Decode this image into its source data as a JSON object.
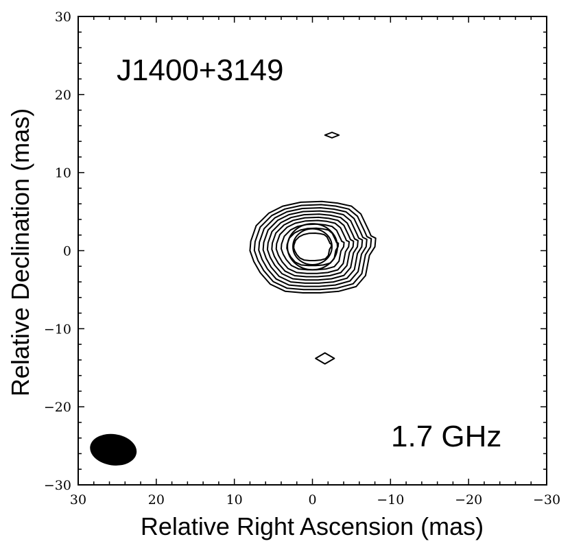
{
  "chart_data": {
    "type": "contour",
    "title": "J1400+3149",
    "frequency_label": "1.7 GHz",
    "xlabel": "Relative Right Ascension (mas)",
    "ylabel": "Relative Declination (mas)",
    "xlim": [
      30,
      -30
    ],
    "ylim": [
      -30,
      30
    ],
    "x_reversed": true,
    "x_ticks": [
      30,
      20,
      10,
      0,
      -10,
      -20,
      -30
    ],
    "y_ticks": [
      30,
      20,
      10,
      0,
      -10,
      -20,
      -30
    ],
    "x_tick_labels": [
      "30",
      "20",
      "10",
      "0",
      "−10",
      "−20",
      "−30"
    ],
    "y_tick_labels": [
      "30",
      "20",
      "10",
      "0",
      "−10",
      "−20",
      "−30"
    ],
    "grid": false,
    "main_component": {
      "center": [
        0.0,
        0.5
      ],
      "outer_contour": [
        [
          8.0,
          0.0
        ],
        [
          7.9,
          1.2
        ],
        [
          7.2,
          3.2
        ],
        [
          5.6,
          4.8
        ],
        [
          3.8,
          5.7
        ],
        [
          1.5,
          6.2
        ],
        [
          -1.2,
          6.3
        ],
        [
          -3.2,
          6.1
        ],
        [
          -5.0,
          5.7
        ],
        [
          -6.2,
          4.7
        ],
        [
          -7.2,
          2.6
        ],
        [
          -7.5,
          1.9
        ],
        [
          -8.1,
          1.6
        ],
        [
          -8.0,
          0.5
        ],
        [
          -7.3,
          -0.6
        ],
        [
          -6.8,
          -3.2
        ],
        [
          -5.6,
          -4.6
        ],
        [
          -3.4,
          -5.2
        ],
        [
          -1.0,
          -5.4
        ],
        [
          1.2,
          -5.4
        ],
        [
          3.5,
          -5.2
        ],
        [
          5.4,
          -4.3
        ],
        [
          6.7,
          -2.8
        ],
        [
          7.5,
          -1.4
        ],
        [
          8.0,
          0.0
        ]
      ],
      "contour_scales": [
        1.0,
        0.93,
        0.86,
        0.79,
        0.72,
        0.65,
        0.58,
        0.5,
        0.41,
        0.3
      ],
      "peak_contour_radii": [
        3.2,
        2.5
      ]
    },
    "minor_components": [
      {
        "center": [
          -2.5,
          14.8
        ],
        "half_width": 0.9,
        "half_height": 0.35
      },
      {
        "center": [
          -1.6,
          -13.8
        ],
        "half_width": 1.2,
        "half_height": 0.7
      }
    ],
    "beam": {
      "center": [
        25.5,
        -25.5
      ],
      "major_axis": 6.0,
      "minor_axis": 4.0
    },
    "annotation_positions": {
      "title": "top-left",
      "frequency": "bottom-right",
      "beam": "bottom-left"
    }
  }
}
